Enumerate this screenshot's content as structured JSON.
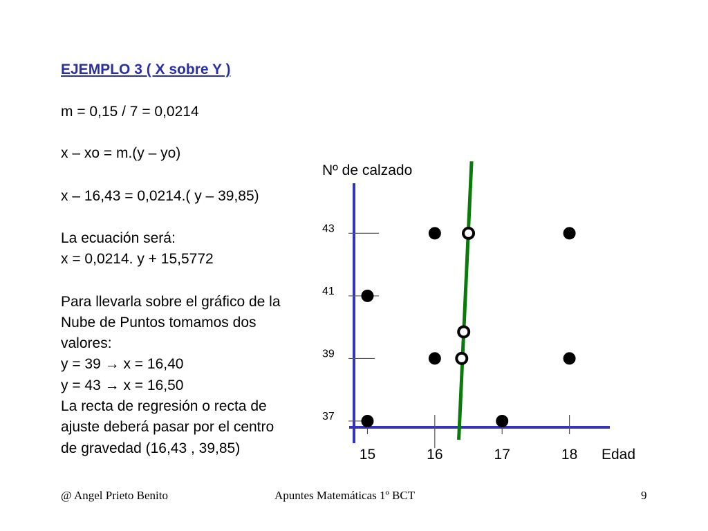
{
  "slide": {
    "title": "EJEMPLO 3 ( X sobre Y )",
    "lines": [
      "m = 0,15 / 7  =  0,0214",
      "x – xo = m.(y – yo)",
      "x – 16,43 = 0,0214.( y – 39,85)",
      "La ecuación será:",
      "x = 0,0214. y + 15,5772",
      "Para llevarla sobre el gráfico de la",
      "Nube de Puntos tomamos dos",
      "valores:",
      "y = 39   → x = 16,40",
      "y = 43   → x = 16,50",
      "La recta de regresión o recta de",
      "ajuste deberá pasar por el centro",
      "de gravedad (16,43 ,  39,85)"
    ]
  },
  "footer": {
    "author": "@    Angel Prieto Benito",
    "course": "Apuntes Matemáticas 1º BCT",
    "page": "9"
  },
  "colors": {
    "axis": "#3333bb",
    "regression_line": "#0a7a0a",
    "title": "#2a2fa8",
    "points": "#000000"
  },
  "chart_data": {
    "type": "scatter",
    "title": "",
    "xlabel": "Edad",
    "ylabel": "Nº de calzado",
    "x_ticks": [
      15,
      16,
      17,
      18
    ],
    "y_ticks": [
      37,
      39,
      41,
      43
    ],
    "xlim": [
      14.8,
      18.6
    ],
    "ylim": [
      36.8,
      44.6
    ],
    "series": [
      {
        "marker": "filled",
        "points": [
          {
            "x": 15,
            "y": 37
          },
          {
            "x": 15,
            "y": 41
          },
          {
            "x": 16,
            "y": 39
          },
          {
            "x": 16,
            "y": 43
          },
          {
            "x": 17,
            "y": 37
          },
          {
            "x": 18,
            "y": 39
          },
          {
            "x": 18,
            "y": 43
          }
        ]
      },
      {
        "marker": "hollow",
        "points": [
          {
            "x": 16.4,
            "y": 39
          },
          {
            "x": 16.5,
            "y": 43
          },
          {
            "x": 16.43,
            "y": 39.85
          }
        ]
      }
    ],
    "regression_line": {
      "equation": "x = 0,0214. y + 15,5772",
      "slope": 0.0214,
      "intercept": 15.5772
    }
  }
}
